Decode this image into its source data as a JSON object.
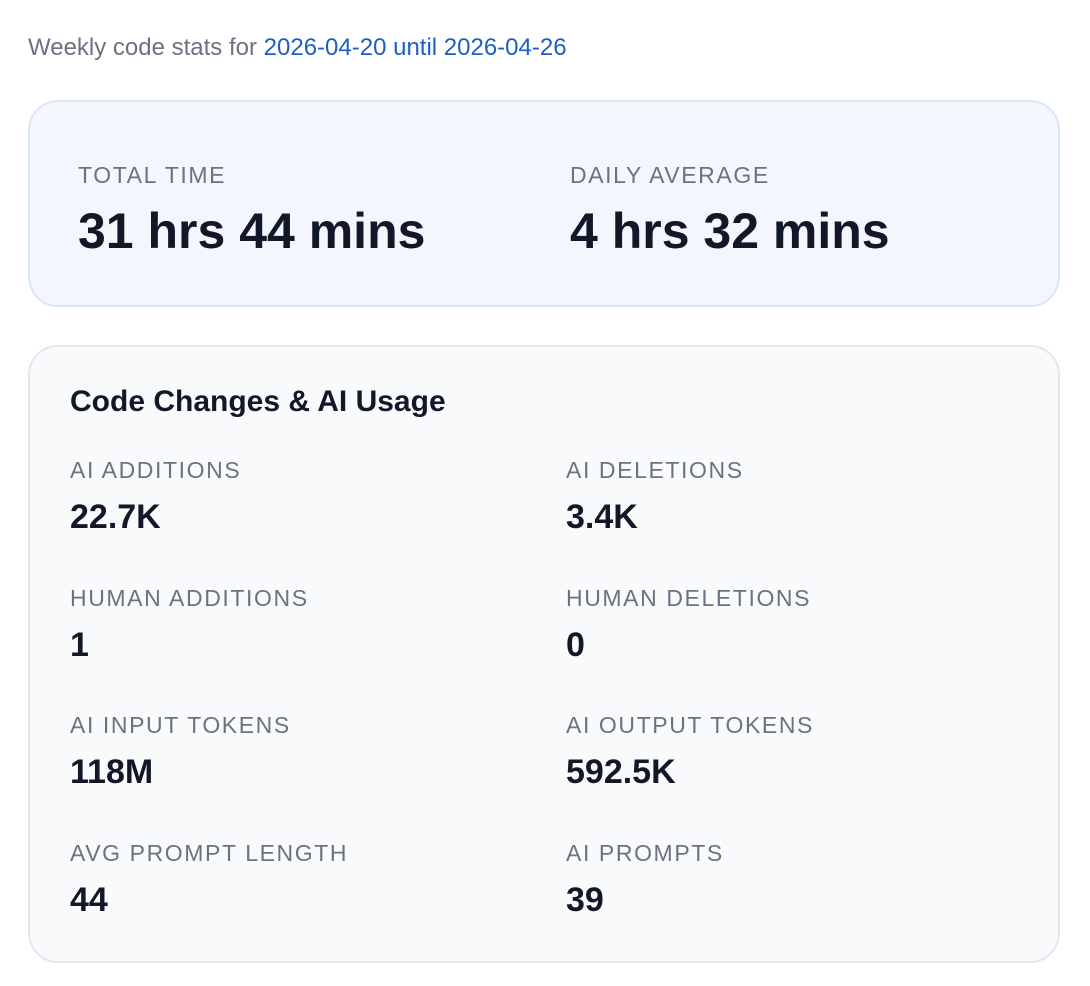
{
  "header": {
    "prefix": "Weekly code stats for",
    "range": "2026-04-20 until 2026-04-26"
  },
  "summary": [
    {
      "label": "TOTAL TIME",
      "value": "31 hrs 44 mins"
    },
    {
      "label": "DAILY AVERAGE",
      "value": "4 hrs 32 mins"
    }
  ],
  "stats": {
    "title": "Code Changes & AI Usage",
    "items": [
      {
        "label": "AI ADDITIONS",
        "value": "22.7K"
      },
      {
        "label": "AI DELETIONS",
        "value": "3.4K"
      },
      {
        "label": "HUMAN ADDITIONS",
        "value": "1"
      },
      {
        "label": "HUMAN DELETIONS",
        "value": "0"
      },
      {
        "label": "AI INPUT TOKENS",
        "value": "118M"
      },
      {
        "label": "AI OUTPUT TOKENS",
        "value": "592.5K"
      },
      {
        "label": "AVG PROMPT LENGTH",
        "value": "44"
      },
      {
        "label": "AI PROMPTS",
        "value": "39"
      }
    ]
  }
}
